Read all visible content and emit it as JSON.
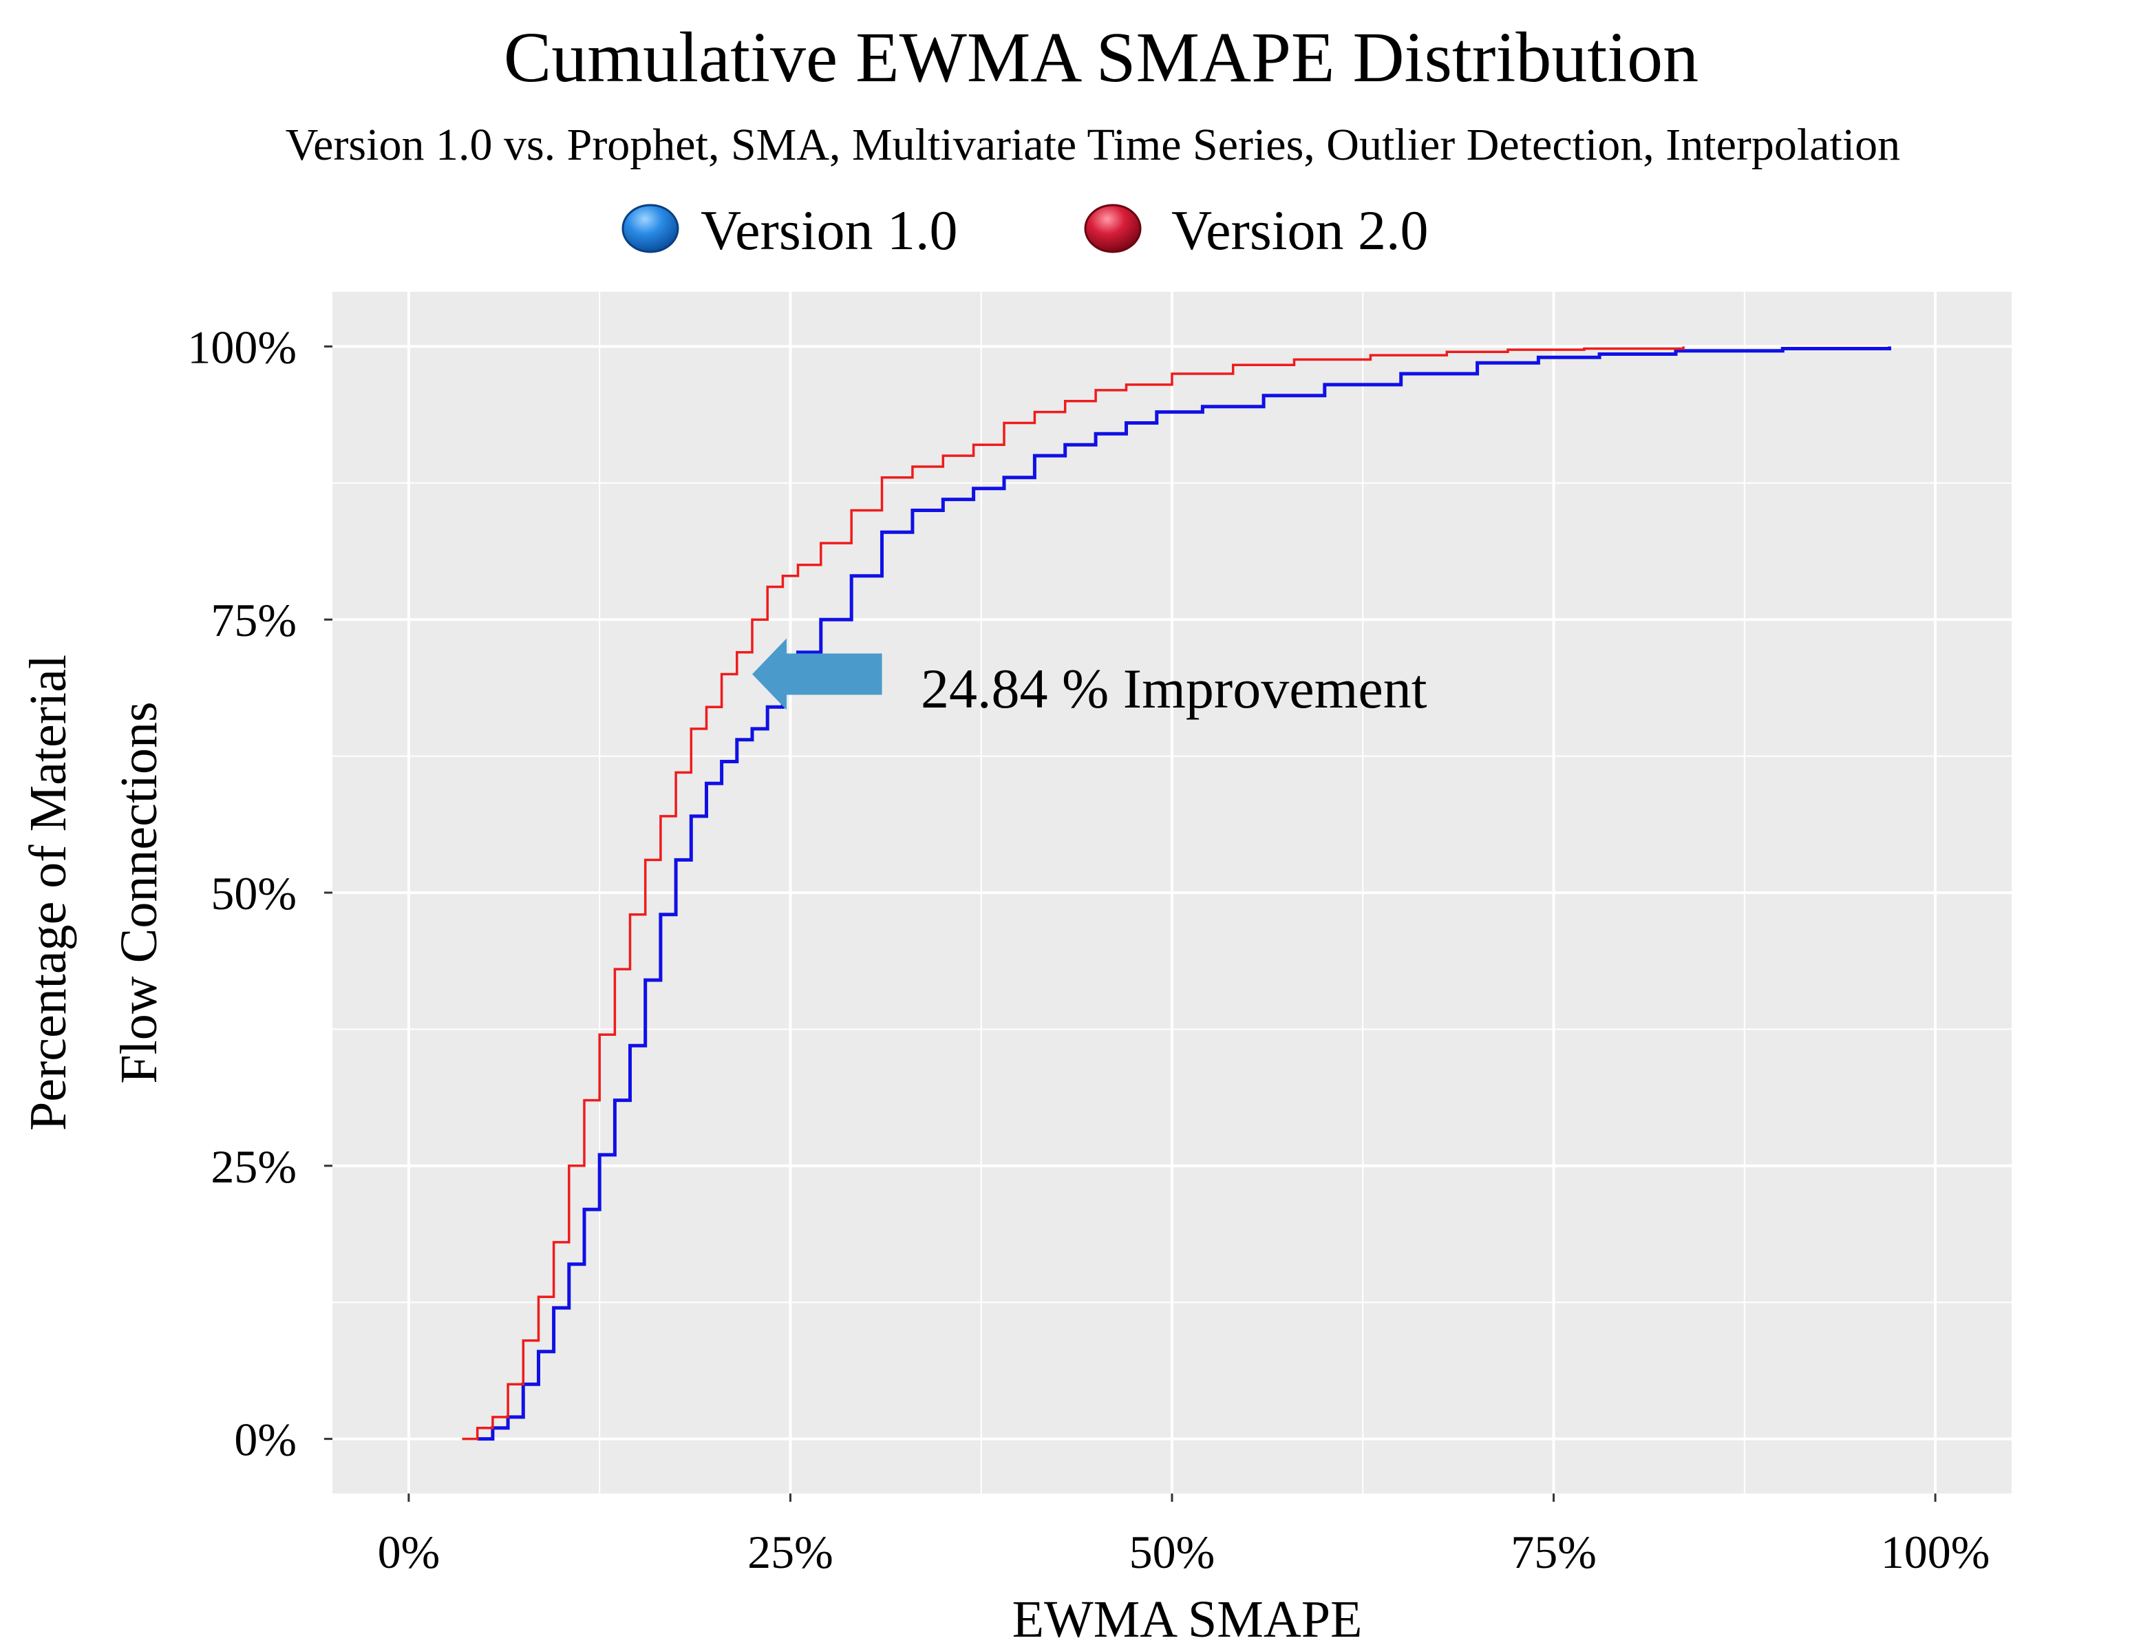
{
  "chart_data": {
    "type": "line",
    "subtype": "step-ecdf",
    "title": "Cumulative EWMA SMAPE Distribution",
    "subtitle": "Version 1.0 vs. Prophet, SMA, Multivariate Time Series, Outlier Detection, Interpolation",
    "xlabel": "EWMA SMAPE",
    "ylabel_lines": [
      "Percentage of Material",
      "Flow Connections"
    ],
    "xlim": [
      -5,
      105
    ],
    "ylim": [
      -5,
      105
    ],
    "x_ticks": [
      0,
      25,
      50,
      75,
      100
    ],
    "x_tick_labels": [
      "0%",
      "25%",
      "50%",
      "75%",
      "100%"
    ],
    "y_ticks": [
      0,
      25,
      50,
      75,
      100
    ],
    "y_tick_labels": [
      "0%",
      "25%",
      "50%",
      "75%",
      "100%"
    ],
    "grid": true,
    "legend_position": "top-center",
    "legend": [
      {
        "name": "Version 1.0",
        "color": "#1E7FD8"
      },
      {
        "name": "Version 2.0",
        "color": "#D0102C"
      }
    ],
    "annotation": {
      "text": "24.84 % Improvement",
      "arrow_from": [
        31,
        70
      ],
      "arrow_to": [
        22.5,
        70
      ],
      "arrow_color": "#4A9BCC"
    },
    "series": [
      {
        "name": "Version 1.0",
        "color": "#1010E6",
        "x": [
          4.5,
          5.5,
          6.5,
          7.5,
          8.5,
          9.5,
          10.5,
          11.5,
          12.5,
          13.5,
          14.5,
          15.5,
          16.5,
          17.5,
          18.5,
          19.5,
          20.5,
          21.5,
          22.5,
          23.5,
          24.5,
          25.5,
          27,
          29,
          31,
          33,
          35,
          37,
          39,
          41,
          43,
          45,
          47,
          49,
          52,
          56,
          60,
          65,
          70,
          74,
          78,
          83,
          90,
          97
        ],
        "y": [
          0,
          1,
          2,
          5,
          8,
          12,
          16,
          21,
          26,
          31,
          36,
          42,
          48,
          53,
          57,
          60,
          62,
          64,
          65,
          67,
          69,
          72,
          75,
          79,
          83,
          85,
          86,
          87,
          88,
          90,
          91,
          92,
          93,
          94,
          94.5,
          95.5,
          96.5,
          97.5,
          98.5,
          99,
          99.3,
          99.6,
          99.8,
          100
        ]
      },
      {
        "name": "Version 2.0",
        "color": "#EE1C1C",
        "x": [
          3.5,
          4.5,
          5.5,
          6.5,
          7.5,
          8.5,
          9.5,
          10.5,
          11.5,
          12.5,
          13.5,
          14.5,
          15.5,
          16.5,
          17.5,
          18.5,
          19.5,
          20.5,
          21.5,
          22.5,
          23.5,
          24.5,
          25.5,
          27,
          29,
          31,
          33,
          35,
          37,
          39,
          41,
          43,
          45,
          47,
          50,
          54,
          58,
          63,
          68,
          72,
          77,
          83.5
        ],
        "y": [
          0,
          1,
          2,
          5,
          9,
          13,
          18,
          25,
          31,
          37,
          43,
          48,
          53,
          57,
          61,
          65,
          67,
          70,
          72,
          75,
          78,
          79,
          80,
          82,
          85,
          88,
          89,
          90,
          91,
          93,
          94,
          95,
          96,
          96.5,
          97.5,
          98.3,
          98.8,
          99.2,
          99.5,
          99.7,
          99.8,
          100
        ]
      }
    ]
  }
}
